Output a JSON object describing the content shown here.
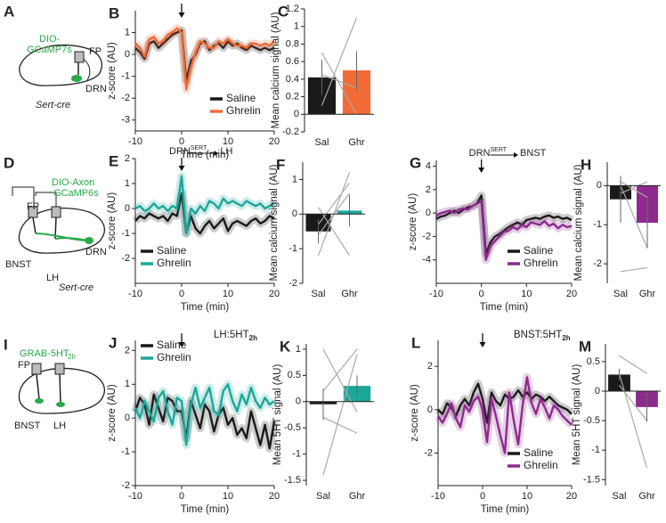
{
  "chart_data": [
    {
      "type": "line",
      "panel": "B",
      "xlabel": "Time (min)",
      "ylabel": "z-score (AU)",
      "arrow_x": 0,
      "legend": "lower right",
      "x": [
        -10,
        -9,
        -8,
        -7,
        -6,
        -5,
        -4,
        -3,
        -2,
        -1,
        0,
        1,
        2,
        3,
        4,
        5,
        6,
        7,
        8,
        9,
        10,
        11,
        12,
        13,
        14,
        15,
        16,
        17,
        18,
        19,
        20
      ],
      "series": [
        {
          "name": "Saline",
          "color": "#1a1a1a",
          "values": [
            0.3,
            0.1,
            -0.2,
            0.5,
            0.6,
            0.3,
            0.5,
            0.7,
            0.9,
            1.0,
            1.1,
            -1.2,
            -0.3,
            0.0,
            0.5,
            0.6,
            0.2,
            0.4,
            0.5,
            0.3,
            0.6,
            0.4,
            0.5,
            0.3,
            0.2,
            0.4,
            0.3,
            0.2,
            0.3,
            0.2,
            0.3
          ]
        },
        {
          "name": "Ghrelin",
          "color": "#f26a35",
          "values": [
            0.5,
            0.3,
            -0.1,
            0.7,
            0.8,
            0.5,
            0.6,
            0.9,
            1.0,
            1.2,
            1.0,
            -1.6,
            -0.6,
            0.1,
            0.6,
            0.5,
            0.3,
            0.3,
            0.6,
            0.5,
            0.7,
            0.5,
            0.4,
            0.4,
            0.3,
            0.5,
            0.5,
            0.4,
            0.5,
            0.4,
            0.6
          ]
        }
      ],
      "xlim": [
        -10,
        20
      ],
      "xticks": [
        -10,
        0,
        10,
        20
      ],
      "ylim": [
        -3.5,
        2
      ],
      "yticks": [
        -3,
        -2,
        -1,
        0,
        1
      ]
    },
    {
      "type": "bar",
      "panel": "C",
      "ylabel": "Mean calcium signal (AU)",
      "categories": [
        "Sal",
        "Ghr"
      ],
      "values": [
        0.42,
        0.5
      ],
      "errors": [
        0.2,
        0.22
      ],
      "colors": [
        "#1a1a1a",
        "#f26a35"
      ],
      "pairs": [
        [
          0.1,
          1.1
        ],
        [
          0.45,
          0.3
        ],
        [
          0.7,
          0.0
        ]
      ],
      "ylim": [
        -0.2,
        1.2
      ],
      "yticks": [
        -0.2,
        0,
        0.2,
        0.4,
        0.6,
        0.8,
        1,
        1.2
      ]
    },
    {
      "type": "line",
      "panel": "E",
      "xlabel": "Time (min)",
      "ylabel": "z-score (AU)",
      "arrow_x": 0,
      "legend": "lower left",
      "annotation": [
        "DRN",
        "SERT",
        "LH"
      ],
      "x": [
        -10,
        -9,
        -8,
        -7,
        -6,
        -5,
        -4,
        -3,
        -2,
        -1,
        0,
        1,
        2,
        3,
        4,
        5,
        6,
        7,
        8,
        9,
        10,
        11,
        12,
        13,
        14,
        15,
        16,
        17,
        18,
        19,
        20
      ],
      "series": [
        {
          "name": "Saline",
          "color": "#1a1a1a",
          "values": [
            -0.5,
            -0.3,
            -0.4,
            -0.2,
            -0.3,
            -0.4,
            -0.3,
            -0.5,
            -0.2,
            -0.3,
            0.6,
            -1.0,
            -0.3,
            -0.8,
            -1.0,
            -0.7,
            -0.5,
            -0.8,
            -0.6,
            -0.4,
            -0.9,
            -0.6,
            -0.5,
            -0.6,
            -0.7,
            -0.5,
            -0.4,
            -0.6,
            -0.5,
            -0.3,
            -0.4
          ]
        },
        {
          "name": "Ghrelin",
          "color": "#1ba79a",
          "values": [
            0.0,
            0.1,
            -0.1,
            0.0,
            0.2,
            0.0,
            0.1,
            -0.1,
            0.1,
            0.0,
            1.3,
            -1.0,
            0.0,
            -0.2,
            0.1,
            -0.1,
            0.3,
            0.2,
            0.0,
            0.4,
            0.2,
            0.3,
            0.2,
            0.1,
            0.3,
            0.2,
            0.1,
            0.2,
            0.0,
            0.1,
            0.2
          ]
        }
      ],
      "xlim": [
        -10,
        20
      ],
      "xticks": [
        -10,
        0,
        10,
        20
      ],
      "ylim": [
        -3,
        2
      ],
      "yticks": [
        -2,
        -1,
        0,
        1,
        2
      ]
    },
    {
      "type": "bar",
      "panel": "F",
      "ylabel": "Mean calcium signal (AU)",
      "categories": [
        "Sal",
        "Ghr"
      ],
      "values": [
        -0.5,
        0.1
      ],
      "errors": [
        0.35,
        0.45
      ],
      "colors": [
        "#1a1a1a",
        "#1ba79a"
      ],
      "pairs": [
        [
          -1.2,
          1.2
        ],
        [
          -0.3,
          0.9
        ],
        [
          0.2,
          -1.2
        ],
        [
          -0.6,
          0.6
        ]
      ],
      "ylim": [
        -2,
        1.5
      ],
      "yticks": [
        -2,
        -1,
        0,
        1
      ]
    },
    {
      "type": "line",
      "panel": "G",
      "xlabel": "Time (min)",
      "ylabel": "z-score (AU)",
      "arrow_x": 0,
      "legend": "lower right",
      "annotation": [
        "DRN",
        "SERT",
        "BNST"
      ],
      "x": [
        -10,
        -9,
        -8,
        -7,
        -6,
        -5,
        -4,
        -3,
        -2,
        -1,
        0,
        1,
        2,
        3,
        4,
        5,
        6,
        7,
        8,
        9,
        10,
        11,
        12,
        13,
        14,
        15,
        16,
        17,
        18,
        19,
        20
      ],
      "series": [
        {
          "name": "Saline",
          "color": "#1a1a1a",
          "values": [
            -0.5,
            -0.3,
            -0.2,
            0.0,
            0.2,
            0.0,
            0.3,
            0.5,
            0.6,
            0.8,
            1.5,
            -3.5,
            -2.5,
            -2.0,
            -1.8,
            -1.5,
            -1.2,
            -1.0,
            -0.8,
            -1.0,
            -0.6,
            -0.5,
            -0.4,
            -0.5,
            -0.3,
            -0.2,
            -0.4,
            -0.3,
            -0.5,
            -0.4,
            -0.6
          ]
        },
        {
          "name": "Ghrelin",
          "color": "#8e2a8e",
          "values": [
            -0.2,
            0.0,
            0.1,
            0.2,
            0.0,
            0.3,
            0.4,
            0.3,
            0.6,
            0.8,
            1.0,
            -4.0,
            -2.8,
            -2.4,
            -2.0,
            -1.6,
            -1.5,
            -1.2,
            -1.4,
            -1.0,
            -1.2,
            -0.8,
            -0.9,
            -1.0,
            -0.7,
            -1.1,
            -0.9,
            -1.3,
            -1.0,
            -1.2,
            -1.1
          ]
        }
      ],
      "xlim": [
        -10,
        20
      ],
      "xticks": [
        -10,
        0,
        10,
        20
      ],
      "ylim": [
        -6,
        4.5
      ],
      "yticks": [
        -4,
        -2,
        0,
        2,
        4
      ]
    },
    {
      "type": "bar",
      "panel": "H",
      "ylabel": "Mean calcium signal (AU)",
      "categories": [
        "Sal",
        "Ghr"
      ],
      "values": [
        -0.35,
        -0.95
      ],
      "errors": [
        0.6,
        0.65
      ],
      "colors": [
        "#1a1a1a",
        "#8e2a8e"
      ],
      "pairs": [
        [
          0.1,
          -0.3
        ],
        [
          -0.2,
          0.1
        ],
        [
          -2.2,
          -2.1
        ],
        [
          0.0,
          -1.6
        ]
      ],
      "ylim": [
        -2.5,
        0.6
      ],
      "yticks": [
        -2,
        -1,
        0
      ]
    },
    {
      "type": "line",
      "panel": "J",
      "title": "LH:5HT",
      "title_sub": "2h",
      "xlabel": "Time (min)",
      "ylabel": "z-score (AU)",
      "arrow_x": 0,
      "legend": "upper left",
      "x": [
        -10,
        -9,
        -8,
        -7,
        -6,
        -5,
        -4,
        -3,
        -2,
        -1,
        0,
        1,
        2,
        3,
        4,
        5,
        6,
        7,
        8,
        9,
        10,
        11,
        12,
        13,
        14,
        15,
        16,
        17,
        18,
        19,
        20
      ],
      "series": [
        {
          "name": "Saline",
          "color": "#1a1a1a",
          "values": [
            0.2,
            0.6,
            0.4,
            -0.2,
            0.7,
            0.3,
            -0.1,
            0.6,
            0.5,
            0.2,
            0.2,
            -0.6,
            0.5,
            0.1,
            -0.3,
            0.4,
            0.2,
            -0.4,
            0.1,
            0.3,
            -0.2,
            0.0,
            -0.5,
            -0.3,
            -0.6,
            0.2,
            -0.3,
            -0.8,
            -0.2,
            -0.9,
            -0.1
          ]
        },
        {
          "name": "Ghrelin",
          "color": "#1ba79a",
          "values": [
            0.3,
            0.0,
            0.5,
            0.2,
            -0.1,
            0.6,
            0.8,
            0.2,
            -0.2,
            0.6,
            0.5,
            -0.8,
            0.4,
            0.9,
            0.3,
            0.6,
            0.9,
            0.2,
            0.1,
            0.8,
            1.0,
            0.5,
            0.2,
            0.7,
            0.4,
            0.9,
            0.5,
            0.3,
            0.6,
            0.4,
            0.5
          ]
        }
      ],
      "xlim": [
        -10,
        20
      ],
      "xticks": [
        -10,
        0,
        10,
        20
      ],
      "ylim": [
        -2,
        2.3
      ],
      "yticks": [
        -2,
        -1,
        0,
        1,
        2
      ]
    },
    {
      "type": "bar",
      "panel": "K",
      "ylabel": "Mean 5HT signal (AU)",
      "categories": [
        "Sal",
        "Ghr"
      ],
      "values": [
        -0.05,
        0.3
      ],
      "errors": [
        0.3,
        0.2
      ],
      "colors": [
        "#1a1a1a",
        "#1ba79a"
      ],
      "pairs": [
        [
          1.0,
          -0.2
        ],
        [
          -1.4,
          0.9
        ],
        [
          0.2,
          1.0
        ],
        [
          -0.3,
          -0.6
        ]
      ],
      "ylim": [
        -1.6,
        1.1
      ],
      "yticks": [
        -1.5,
        -1,
        -0.5,
        0,
        0.5,
        1
      ]
    },
    {
      "type": "line",
      "panel": "L",
      "title": "BNST:5HT",
      "title_sub": "2h",
      "xlabel": "Time (min)",
      "ylabel": "z-score (AU)",
      "arrow_x": 0,
      "legend": "lower right",
      "x": [
        -10,
        -9,
        -8,
        -7,
        -6,
        -5,
        -4,
        -3,
        -2,
        -1,
        0,
        1,
        2,
        3,
        4,
        5,
        6,
        7,
        8,
        9,
        10,
        11,
        12,
        13,
        14,
        15,
        16,
        17,
        18,
        19,
        20
      ],
      "series": [
        {
          "name": "Saline",
          "color": "#1a1a1a",
          "values": [
            0.0,
            -0.2,
            0.3,
            0.1,
            -0.3,
            0.2,
            0.5,
            0.2,
            0.8,
            1.2,
            0.5,
            -0.6,
            0.8,
            0.4,
            0.2,
            0.7,
            0.5,
            0.6,
            0.9,
            0.6,
            0.8,
            0.5,
            0.7,
            0.6,
            0.4,
            0.6,
            0.4,
            0.2,
            0.1,
            0.0,
            -0.2
          ]
        },
        {
          "name": "Ghrelin",
          "color": "#8e2a8e",
          "values": [
            -0.3,
            -0.6,
            -0.2,
            0.3,
            -0.4,
            -0.8,
            0.2,
            -0.1,
            0.4,
            0.6,
            0.0,
            -1.5,
            0.5,
            -0.3,
            -1.2,
            -2.0,
            0.8,
            -0.5,
            -1.6,
            0.2,
            1.5,
            0.3,
            -0.2,
            0.5,
            0.1,
            -0.4,
            0.2,
            0.0,
            -0.3,
            -0.5,
            -0.7
          ]
        }
      ],
      "xlim": [
        -10,
        20
      ],
      "xticks": [
        -10,
        0,
        10,
        20
      ],
      "ylim": [
        -3.5,
        3.2
      ],
      "yticks": [
        -2,
        0,
        2
      ]
    },
    {
      "type": "bar",
      "panel": "M",
      "ylabel": "Mean 5HT signal (AU)",
      "categories": [
        "Sal",
        "Ghr"
      ],
      "values": [
        0.28,
        -0.27
      ],
      "errors": [
        0.1,
        0.25
      ],
      "colors": [
        "#1a1a1a",
        "#8e2a8e"
      ],
      "pairs": [
        [
          0.6,
          0.3
        ],
        [
          0.3,
          -1.3
        ],
        [
          0.1,
          -0.5
        ]
      ],
      "ylim": [
        -1.6,
        0.8
      ],
      "yticks": [
        -1.5,
        -1,
        -0.5,
        0,
        0.5
      ]
    }
  ],
  "schematics": [
    {
      "panel": "A",
      "labels": [
        "DIO-",
        "GCaMP7s",
        "FP",
        "DRN",
        "Sert-cre"
      ]
    },
    {
      "panel": "D",
      "labels": [
        "DIO-Axon",
        "GCaMP6s",
        "FP",
        "BNST",
        "LH",
        "DRN",
        "Sert-cre"
      ]
    },
    {
      "panel": "I",
      "labels": [
        "GRAB-5HT",
        "2h",
        "FP",
        "BNST",
        "LH"
      ]
    }
  ]
}
